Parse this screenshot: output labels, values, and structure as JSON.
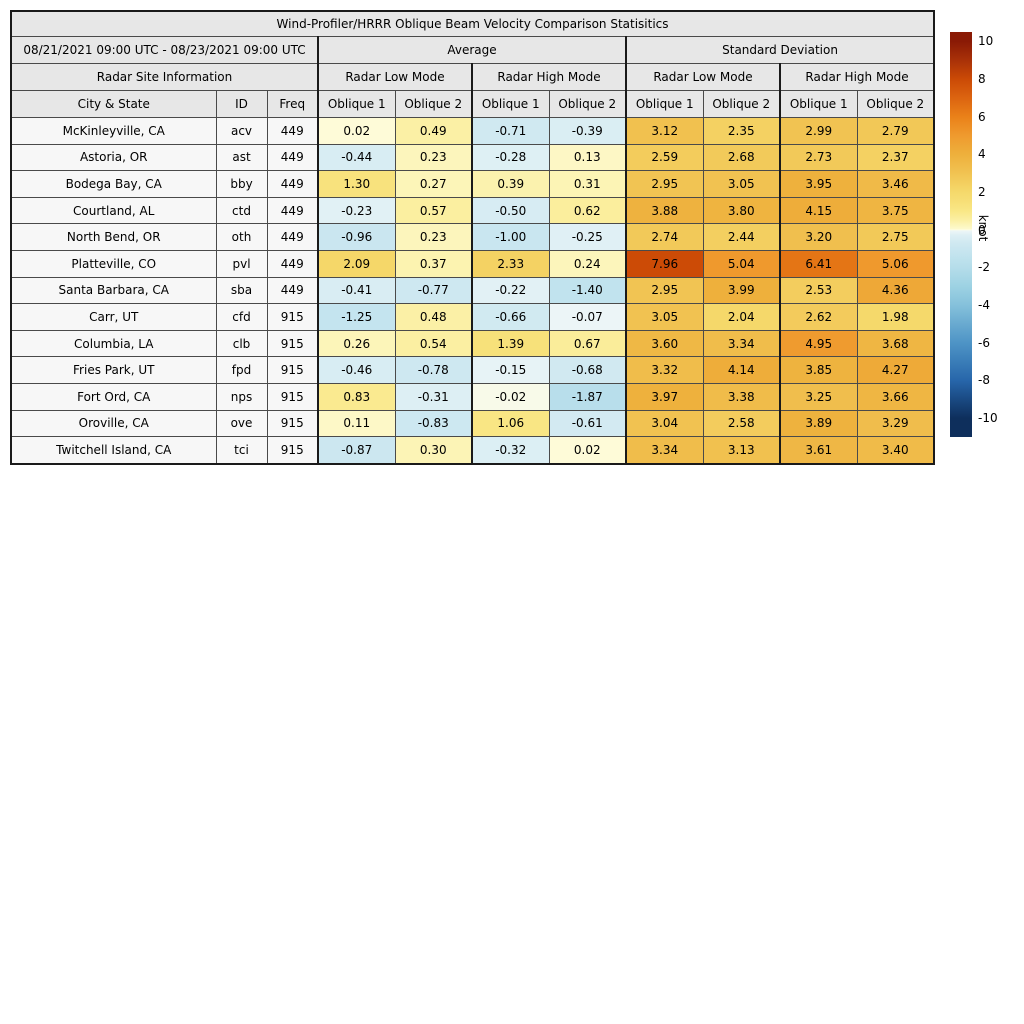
{
  "chart_data": {
    "type": "heatmap",
    "title": "Wind-Profiler/HRRR Oblique Beam Velocity Comparison Statisitics",
    "period": "08/21/2021 09:00 UTC - 08/23/2021 09:00 UTC",
    "groups": {
      "average": "Average",
      "std_dev": "Standard Deviation",
      "site_info": "Radar Site Information",
      "low_mode": "Radar Low Mode",
      "high_mode": "Radar High Mode"
    },
    "columns": {
      "city": "City & State",
      "id": "ID",
      "freq": "Freq",
      "oblique1": "Oblique 1",
      "oblique2": "Oblique 2"
    },
    "value_columns": [
      "Average Radar Low Mode Oblique 1",
      "Average Radar Low Mode Oblique 2",
      "Average Radar High Mode Oblique 1",
      "Average Radar High Mode Oblique 2",
      "Standard Deviation Radar Low Mode Oblique 1",
      "Standard Deviation Radar Low Mode Oblique 2",
      "Standard Deviation Radar High Mode Oblique 1",
      "Standard Deviation Radar High Mode Oblique 2"
    ],
    "rows": [
      {
        "city": "McKinleyville, CA",
        "id": "acv",
        "freq": "449",
        "values": [
          0.02,
          0.49,
          -0.71,
          -0.39,
          3.12,
          2.35,
          2.99,
          2.79
        ]
      },
      {
        "city": "Astoria, OR",
        "id": "ast",
        "freq": "449",
        "values": [
          -0.44,
          0.23,
          -0.28,
          0.13,
          2.59,
          2.68,
          2.73,
          2.37
        ]
      },
      {
        "city": "Bodega Bay, CA",
        "id": "bby",
        "freq": "449",
        "values": [
          1.3,
          0.27,
          0.39,
          0.31,
          2.95,
          3.05,
          3.95,
          3.46
        ]
      },
      {
        "city": "Courtland, AL",
        "id": "ctd",
        "freq": "449",
        "values": [
          -0.23,
          0.57,
          -0.5,
          0.62,
          3.88,
          3.8,
          4.15,
          3.75
        ]
      },
      {
        "city": "North Bend, OR",
        "id": "oth",
        "freq": "449",
        "values": [
          -0.96,
          0.23,
          -1.0,
          -0.25,
          2.74,
          2.44,
          3.2,
          2.75
        ]
      },
      {
        "city": "Platteville, CO",
        "id": "pvl",
        "freq": "449",
        "values": [
          2.09,
          0.37,
          2.33,
          0.24,
          7.96,
          5.04,
          6.41,
          5.06
        ]
      },
      {
        "city": "Santa Barbara, CA",
        "id": "sba",
        "freq": "449",
        "values": [
          -0.41,
          -0.77,
          -0.22,
          -1.4,
          2.95,
          3.99,
          2.53,
          4.36
        ]
      },
      {
        "city": "Carr, UT",
        "id": "cfd",
        "freq": "915",
        "values": [
          -1.25,
          0.48,
          -0.66,
          -0.07,
          3.05,
          2.04,
          2.62,
          1.98
        ]
      },
      {
        "city": "Columbia, LA",
        "id": "clb",
        "freq": "915",
        "values": [
          0.26,
          0.54,
          1.39,
          0.67,
          3.6,
          3.34,
          4.95,
          3.68
        ]
      },
      {
        "city": "Fries Park, UT",
        "id": "fpd",
        "freq": "915",
        "values": [
          -0.46,
          -0.78,
          -0.15,
          -0.68,
          3.32,
          4.14,
          3.85,
          4.27
        ]
      },
      {
        "city": "Fort Ord, CA",
        "id": "nps",
        "freq": "915",
        "values": [
          0.83,
          -0.31,
          -0.02,
          -1.87,
          3.97,
          3.38,
          3.25,
          3.66
        ]
      },
      {
        "city": "Oroville, CA",
        "id": "ove",
        "freq": "915",
        "values": [
          0.11,
          -0.83,
          1.06,
          -0.61,
          3.04,
          2.58,
          3.89,
          3.29
        ]
      },
      {
        "city": "Twitchell Island, CA",
        "id": "tci",
        "freq": "915",
        "values": [
          -0.87,
          0.3,
          -0.32,
          0.02,
          3.34,
          3.13,
          3.61,
          3.4
        ]
      }
    ],
    "colorbar": {
      "label": "knot",
      "min": -10,
      "max": 10,
      "ticks": [
        10,
        8,
        6,
        4,
        2,
        0,
        -2,
        -4,
        -6,
        -8,
        -10
      ],
      "stops": [
        [
          10,
          "#8A1A05"
        ],
        [
          9,
          "#A93108"
        ],
        [
          8,
          "#CB4A06"
        ],
        [
          7,
          "#DC6410"
        ],
        [
          6,
          "#EA8119"
        ],
        [
          5,
          "#EF9A2E"
        ],
        [
          4,
          "#EEB03C"
        ],
        [
          3,
          "#F1C352"
        ],
        [
          2,
          "#F5D96B"
        ],
        [
          1.5,
          "#F7DF77"
        ],
        [
          1,
          "#F9E786"
        ],
        [
          0.5,
          "#FBF0A4"
        ],
        [
          0.05,
          "#FDF9CC"
        ],
        [
          0,
          "#FFFDE0"
        ],
        [
          -0.05,
          "#EDF6F7"
        ],
        [
          -0.3,
          "#DDEFF4"
        ],
        [
          -0.7,
          "#D0E9F1"
        ],
        [
          -1,
          "#C9E6F0"
        ],
        [
          -1.5,
          "#BFE2ED"
        ],
        [
          -2,
          "#B5DDEA"
        ],
        [
          -3,
          "#9DD2E3"
        ],
        [
          -4,
          "#85C1DB"
        ],
        [
          -5,
          "#69AAD0"
        ],
        [
          -6,
          "#4E94C6"
        ],
        [
          -7,
          "#3A7DB8"
        ],
        [
          -8,
          "#2766AA"
        ],
        [
          -9,
          "#1A4A83"
        ],
        [
          -10,
          "#0E2F5C"
        ]
      ]
    }
  }
}
